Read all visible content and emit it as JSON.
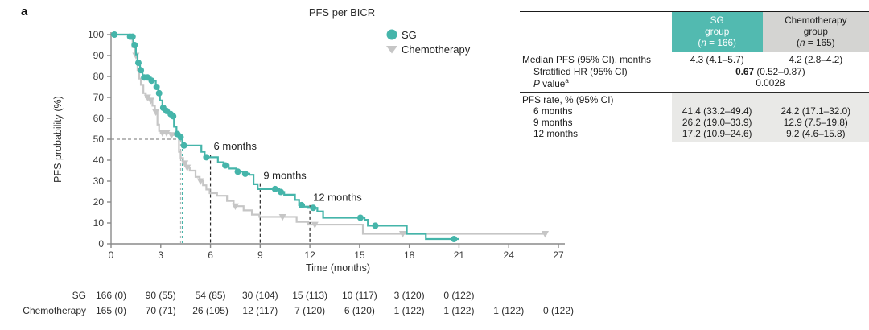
{
  "panel_label": "a",
  "colors": {
    "sg_teal": "#45b5aa",
    "sg_header_bg": "#52bab0",
    "chemo_gray": "#c6c6c6",
    "chemo_header_bg": "#d4d4d2",
    "rate_section_bg": "#e9e9e7",
    "axis_gray": "#8a8a8a"
  },
  "chart_data": {
    "type": "line",
    "subtype": "kaplan-meier-step",
    "title": "PFS per BICR",
    "xlabel": "Time (months)",
    "ylabel": "PFS probability (%)",
    "xlim": [
      0,
      27
    ],
    "ylim": [
      0,
      100
    ],
    "xticks": [
      0,
      3,
      6,
      9,
      12,
      15,
      18,
      21,
      24,
      27
    ],
    "yticks": [
      0,
      10,
      20,
      30,
      40,
      50,
      60,
      70,
      80,
      90,
      100
    ],
    "grid": false,
    "legend_position": "upper right inside",
    "series": [
      {
        "name": "SG",
        "color": "#45b5aa",
        "marker": "circle",
        "median_months": 4.3,
        "end": 21,
        "steps": [
          [
            0,
            100
          ],
          [
            1.1,
            99
          ],
          [
            1.35,
            95
          ],
          [
            1.5,
            90.5
          ],
          [
            1.6,
            86.5
          ],
          [
            1.75,
            83
          ],
          [
            1.9,
            79.5
          ],
          [
            2.4,
            78
          ],
          [
            2.7,
            75
          ],
          [
            2.85,
            72
          ],
          [
            2.95,
            68.5
          ],
          [
            3.1,
            65
          ],
          [
            3.2,
            63.5
          ],
          [
            3.5,
            62
          ],
          [
            3.7,
            61
          ],
          [
            3.8,
            56
          ],
          [
            3.95,
            52.5
          ],
          [
            4.15,
            51
          ],
          [
            4.3,
            47
          ],
          [
            5.45,
            44
          ],
          [
            5.65,
            41.4
          ],
          [
            6.45,
            39
          ],
          [
            6.8,
            37.5
          ],
          [
            7.1,
            36
          ],
          [
            7.55,
            34.5
          ],
          [
            8.0,
            33.5
          ],
          [
            8.35,
            33
          ],
          [
            8.6,
            28.5
          ],
          [
            8.85,
            26.2
          ],
          [
            10.15,
            24.8
          ],
          [
            10.45,
            23.5
          ],
          [
            11.1,
            21
          ],
          [
            11.35,
            18.5
          ],
          [
            11.65,
            17.8
          ],
          [
            11.9,
            17.2
          ],
          [
            12.45,
            15.5
          ],
          [
            12.8,
            12.5
          ],
          [
            15.3,
            11.5
          ],
          [
            15.5,
            8.7
          ],
          [
            17.85,
            4.8
          ],
          [
            19.0,
            2.3
          ]
        ],
        "censors": [
          [
            0.2,
            100
          ],
          [
            1.15,
            99
          ],
          [
            1.3,
            99
          ],
          [
            1.42,
            95
          ],
          [
            1.65,
            86.5
          ],
          [
            1.8,
            83
          ],
          [
            2.0,
            79.5
          ],
          [
            2.2,
            79.5
          ],
          [
            2.45,
            78
          ],
          [
            2.75,
            75
          ],
          [
            2.9,
            72
          ],
          [
            3.15,
            65
          ],
          [
            3.35,
            63.5
          ],
          [
            3.6,
            62
          ],
          [
            3.75,
            61
          ],
          [
            4.0,
            52.5
          ],
          [
            4.2,
            51
          ],
          [
            4.4,
            47
          ],
          [
            5.75,
            41.4
          ],
          [
            6.9,
            37.5
          ],
          [
            7.65,
            34.5
          ],
          [
            8.1,
            33.5
          ],
          [
            9.9,
            26.2
          ],
          [
            10.25,
            24.8
          ],
          [
            11.5,
            18.5
          ],
          [
            12.2,
            17.2
          ],
          [
            15.05,
            12.5
          ],
          [
            15.95,
            8.7
          ],
          [
            20.7,
            2.3
          ]
        ]
      },
      {
        "name": "Chemotherapy",
        "color": "#c6c6c6",
        "marker": "triangle-down",
        "median_months": 4.2,
        "end": 26.3,
        "steps": [
          [
            0,
            100
          ],
          [
            1.15,
            98
          ],
          [
            1.3,
            94
          ],
          [
            1.45,
            90
          ],
          [
            1.6,
            83
          ],
          [
            1.7,
            79
          ],
          [
            1.8,
            76
          ],
          [
            1.95,
            72
          ],
          [
            2.1,
            70
          ],
          [
            2.3,
            68.5
          ],
          [
            2.5,
            66
          ],
          [
            2.65,
            63
          ],
          [
            2.8,
            57
          ],
          [
            2.9,
            54
          ],
          [
            3.0,
            53
          ],
          [
            3.6,
            52
          ],
          [
            4.1,
            44
          ],
          [
            4.2,
            41
          ],
          [
            4.35,
            38.5
          ],
          [
            4.55,
            36.5
          ],
          [
            4.75,
            35
          ],
          [
            5.1,
            32
          ],
          [
            5.35,
            30
          ],
          [
            5.55,
            28
          ],
          [
            5.75,
            26
          ],
          [
            5.95,
            24.2
          ],
          [
            6.4,
            23
          ],
          [
            7.0,
            20.5
          ],
          [
            7.4,
            18
          ],
          [
            8.0,
            16
          ],
          [
            8.5,
            14
          ],
          [
            8.95,
            12.9
          ],
          [
            11.2,
            10.5
          ],
          [
            11.9,
            9.2
          ],
          [
            15.2,
            4.8
          ]
        ],
        "censors": [
          [
            1.5,
            90
          ],
          [
            2.2,
            70
          ],
          [
            2.4,
            68.5
          ],
          [
            2.7,
            63
          ],
          [
            3.1,
            53
          ],
          [
            3.35,
            53
          ],
          [
            3.65,
            52
          ],
          [
            4.45,
            38.5
          ],
          [
            4.6,
            36.5
          ],
          [
            5.4,
            30
          ],
          [
            7.5,
            18
          ],
          [
            10.35,
            12.9
          ],
          [
            12.3,
            9.2
          ],
          [
            17.6,
            4.8
          ],
          [
            26.2,
            4.8
          ]
        ]
      }
    ],
    "annotations": {
      "median_reference": {
        "y_pct": 50,
        "sg_month": 4.3,
        "chemo_month": 4.2
      },
      "month_lines": [
        {
          "month": 6,
          "label": "6 months",
          "line_top_pct": 42.5,
          "label_pct": 45
        },
        {
          "month": 9,
          "label": "9 months",
          "line_top_pct": 29,
          "label_pct": 31
        },
        {
          "month": 12,
          "label": "12 months",
          "line_top_pct": 18.5,
          "label_pct": 20.5
        }
      ]
    },
    "at_risk": {
      "rows": [
        {
          "label": "SG",
          "values": [
            "166 (0)",
            "90 (55)",
            "54 (85)",
            "30 (104)",
            "15 (113)",
            "10 (117)",
            "3 (120)",
            "0 (122)"
          ]
        },
        {
          "label": "Chemotherapy",
          "values": [
            "165 (0)",
            "70 (71)",
            "26 (105)",
            "12 (117)",
            "7 (120)",
            "6 (120)",
            "1 (122)",
            "1 (122)",
            "1 (122)",
            "0 (122)"
          ]
        }
      ]
    }
  },
  "stats_table": {
    "header": {
      "sg": {
        "line1": "SG",
        "line2": "group",
        "n_prefix": "(",
        "n_italic": "n",
        "n_suffix": " = 166)"
      },
      "chemo": {
        "line1": "Chemotherapy",
        "line2": "group",
        "n_prefix": "(",
        "n_italic": "n",
        "n_suffix": " = 165)"
      }
    },
    "rows": {
      "median": {
        "label": "Median PFS (95% CI), months",
        "sg": "4.3 (4.1–5.7)",
        "chemo": "4.2 (2.8–4.2)"
      },
      "hr": {
        "label": "Stratified HR (95% CI)",
        "bold": "0.67",
        "rest": " (0.52–0.87)"
      },
      "pvalue": {
        "p_italic": "P",
        "label": " value",
        "sup": "a",
        "value": "0.0028"
      },
      "rate_header": "PFS rate, % (95% CI)",
      "rate_rows": [
        {
          "label": "6 months",
          "sg": "41.4 (33.2–49.4)",
          "chemo": "24.2 (17.1–32.0)"
        },
        {
          "label": "9 months",
          "sg": "26.2 (19.0–33.9)",
          "chemo": "12.9 (7.5–19.8)"
        },
        {
          "label": "12 months",
          "sg": "17.2 (10.9–24.6)",
          "chemo": "9.2 (4.6–15.8)"
        }
      ]
    }
  }
}
